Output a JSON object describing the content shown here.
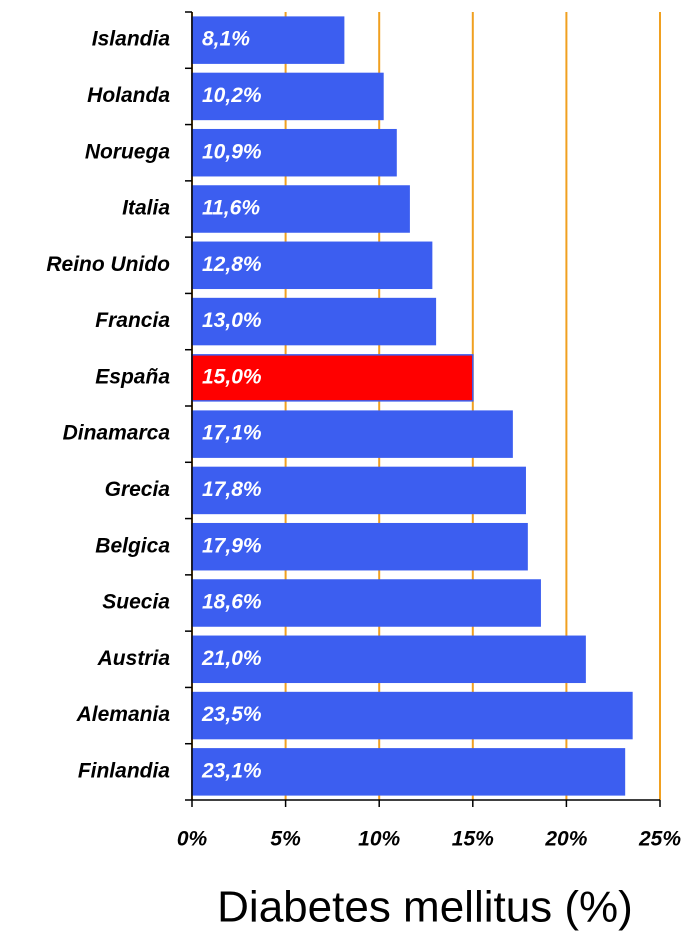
{
  "chart_data": {
    "type": "bar",
    "orientation": "horizontal",
    "x_label": "Diabetes mellitus (%)",
    "categories": [
      "Islandia",
      "Holanda",
      "Noruega",
      "Italia",
      "Reino Unido",
      "Francia",
      "España",
      "Dinamarca",
      "Grecia",
      "Belgica",
      "Suecia",
      "Austria",
      "Alemania",
      "Finlandia"
    ],
    "values": [
      8.1,
      10.2,
      10.9,
      11.6,
      12.8,
      13.0,
      15.0,
      17.1,
      17.8,
      17.9,
      18.6,
      21.0,
      23.5,
      23.1
    ],
    "value_labels": [
      "8,1%",
      "10,2%",
      "10,9%",
      "11,6%",
      "12,8%",
      "13,0%",
      "15,0%",
      "17,1%",
      "17,8%",
      "17,9%",
      "18,6%",
      "21,0%",
      "23,5%",
      "23,1%"
    ],
    "colors": [
      "#3c5ef0",
      "#3c5ef0",
      "#3c5ef0",
      "#3c5ef0",
      "#3c5ef0",
      "#3c5ef0",
      "#ff0000",
      "#3c5ef0",
      "#3c5ef0",
      "#3c5ef0",
      "#3c5ef0",
      "#3c5ef0",
      "#3c5ef0",
      "#3c5ef0"
    ],
    "xlim": [
      0,
      25
    ],
    "xticks": [
      {
        "value": 0,
        "label": "0%"
      },
      {
        "value": 5,
        "label": "5%"
      },
      {
        "value": 10,
        "label": "10%"
      },
      {
        "value": 15,
        "label": "15%"
      },
      {
        "value": 20,
        "label": "20%"
      },
      {
        "value": 25,
        "label": "25%"
      }
    ],
    "grid": true,
    "grid_color": "#f0a020"
  }
}
